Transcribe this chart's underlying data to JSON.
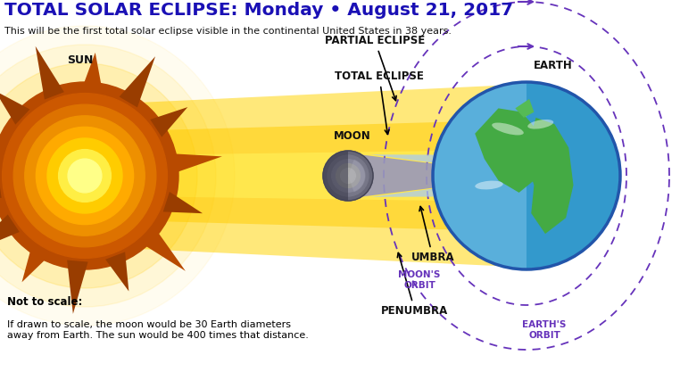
{
  "title": "TOTAL SOLAR ECLIPSE: Monday • August 21, 2017",
  "subtitle": "This will be the first total solar eclipse visible in the continental United States in 38 years.",
  "title_color": "#1a10b5",
  "subtitle_color": "#111111",
  "bg_color": "#ffffff",
  "orbit_color": "#6633bb",
  "label_sun": "SUN",
  "label_moon": "MOON",
  "label_earth": "EARTH",
  "label_partial": "PARTIAL ECLIPSE",
  "label_total": "TOTAL ECLIPSE",
  "label_umbra": "UMBRA",
  "label_penumbra": "PENUMBRA",
  "label_moons_orbit": "MOON'S\nORBIT",
  "label_earths_orbit": "EARTH'S\nORBIT",
  "label_not_to_scale": "Not to scale:",
  "label_note": "If drawn to scale, the moon would be 30 Earth diameters\naway from Earth. The sun would be 400 times that distance.",
  "label_color_main": "#111111",
  "figw": 7.62,
  "figh": 4.17,
  "dpi": 100
}
